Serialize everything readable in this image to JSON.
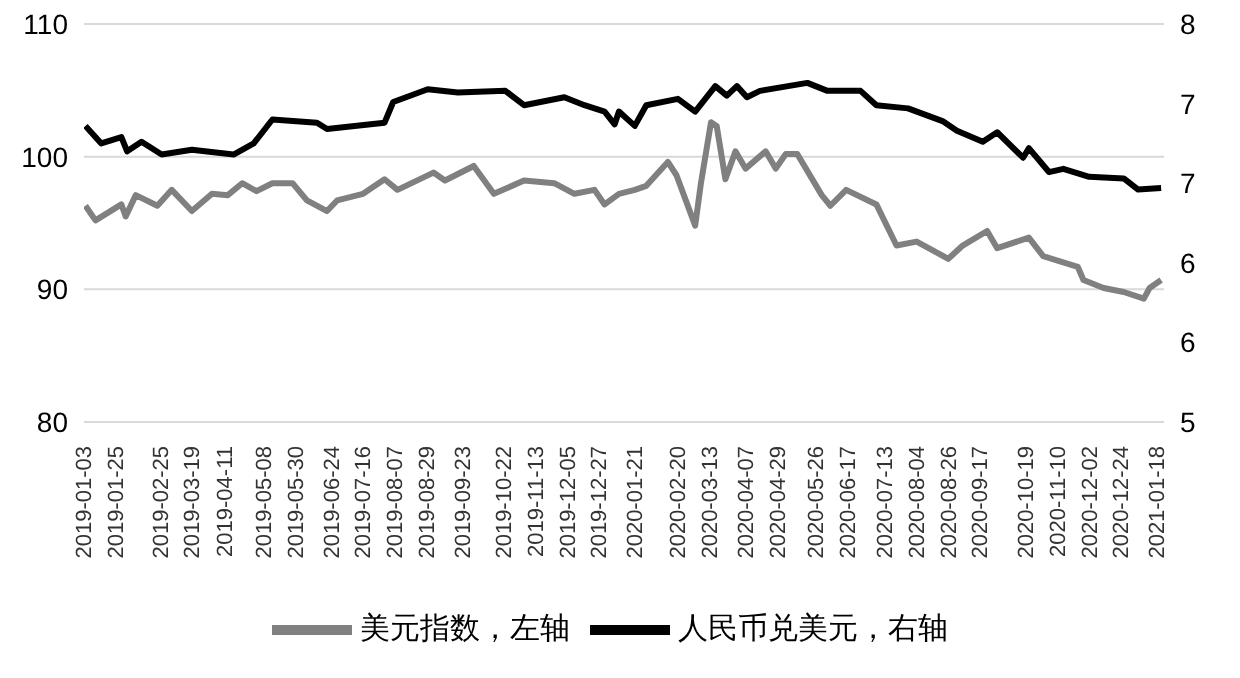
{
  "chart_data": {
    "type": "line",
    "xlim": [
      "2019-01-02",
      "2021-01-22"
    ],
    "xticks": [
      "2019-01-03",
      "2019-01-25",
      "2019-02-25",
      "2019-03-19",
      "2019-04-11",
      "2019-05-08",
      "2019-05-30",
      "2019-06-24",
      "2019-07-16",
      "2019-08-07",
      "2019-08-29",
      "2019-09-23",
      "2019-10-22",
      "2019-11-13",
      "2019-12-05",
      "2019-12-27",
      "2020-01-21",
      "2020-02-20",
      "2020-03-13",
      "2020-04-07",
      "2020-04-29",
      "2020-05-26",
      "2020-06-17",
      "2020-07-13",
      "2020-08-04",
      "2020-08-26",
      "2020-09-17",
      "2020-10-19",
      "2020-11-10",
      "2020-12-02",
      "2020-12-24",
      "2021-01-18"
    ],
    "ylim": [
      80,
      110
    ],
    "yticks": [
      80,
      90,
      100,
      110
    ],
    "y2lim": [
      5,
      7.5
    ],
    "y2ticks": [
      {
        "value": 5,
        "label": "5"
      },
      {
        "value": 5.5,
        "label": "6"
      },
      {
        "value": 6,
        "label": "6"
      },
      {
        "value": 6.5,
        "label": "7"
      },
      {
        "value": 7,
        "label": "7"
      },
      {
        "value": 7.5,
        "label": "8"
      }
    ],
    "grid": "y",
    "legend": "bottom",
    "marker": "none",
    "line_style": "solid",
    "series": [
      {
        "name": "美元指数，左轴",
        "color": "#808080",
        "x": [
          "2019-01-03",
          "2019-01-10",
          "2019-01-28",
          "2019-01-31",
          "2019-02-07",
          "2019-02-22",
          "2019-03-04",
          "2019-03-18",
          "2019-04-01",
          "2019-04-12",
          "2019-04-22",
          "2019-05-02",
          "2019-05-13",
          "2019-05-27",
          "2019-06-06",
          "2019-06-20",
          "2019-06-27",
          "2019-07-15",
          "2019-07-30",
          "2019-08-08",
          "2019-09-02",
          "2019-09-10",
          "2019-09-30",
          "2019-10-14",
          "2019-11-04",
          "2019-11-25",
          "2019-12-09",
          "2019-12-23",
          "2019-12-30",
          "2020-01-09",
          "2020-01-20",
          "2020-01-28",
          "2020-02-12",
          "2020-02-18",
          "2020-03-02",
          "2020-03-06",
          "2020-03-13",
          "2020-03-17",
          "2020-03-23",
          "2020-03-30",
          "2020-04-06",
          "2020-04-20",
          "2020-04-27",
          "2020-05-04",
          "2020-05-12",
          "2020-05-29",
          "2020-06-04",
          "2020-06-15",
          "2020-07-06",
          "2020-07-20",
          "2020-08-03",
          "2020-08-25",
          "2020-09-04",
          "2020-09-21",
          "2020-09-28",
          "2020-10-20",
          "2020-10-30",
          "2020-11-23",
          "2020-11-27",
          "2020-12-11",
          "2020-12-25",
          "2021-01-08",
          "2021-01-12",
          "2021-01-20"
        ],
        "values": [
          96.3,
          95.2,
          96.4,
          95.5,
          97.1,
          96.3,
          97.5,
          95.9,
          97.2,
          97.1,
          98.0,
          97.4,
          98.0,
          98.0,
          96.7,
          95.9,
          96.7,
          97.2,
          98.3,
          97.5,
          98.8,
          98.2,
          99.3,
          97.2,
          98.2,
          98.0,
          97.2,
          97.5,
          96.4,
          97.2,
          97.5,
          97.8,
          99.6,
          98.6,
          94.8,
          98.0,
          102.6,
          102.3,
          98.3,
          100.4,
          99.1,
          100.4,
          99.1,
          100.2,
          100.2,
          97.1,
          96.3,
          97.5,
          96.4,
          93.3,
          93.6,
          92.3,
          93.3,
          94.4,
          93.1,
          93.9,
          92.5,
          91.7,
          90.7,
          90.1,
          89.8,
          89.3,
          90.1,
          90.7
        ]
      },
      {
        "name": "人民币兑美元，右轴",
        "color": "#000000",
        "axis": "y2",
        "x": [
          "2019-01-03",
          "2019-01-14",
          "2019-01-28",
          "2019-02-01",
          "2019-02-11",
          "2019-02-25",
          "2019-03-18",
          "2019-04-16",
          "2019-04-30",
          "2019-05-13",
          "2019-06-13",
          "2019-06-20",
          "2019-07-30",
          "2019-08-05",
          "2019-08-29",
          "2019-09-19",
          "2019-10-22",
          "2019-11-04",
          "2019-12-02",
          "2019-12-16",
          "2019-12-30",
          "2020-01-06",
          "2020-01-09",
          "2020-01-20",
          "2020-01-28",
          "2020-02-19",
          "2020-03-02",
          "2020-03-16",
          "2020-03-24",
          "2020-03-31",
          "2020-04-07",
          "2020-04-16",
          "2020-05-19",
          "2020-06-02",
          "2020-06-25",
          "2020-07-06",
          "2020-07-28",
          "2020-08-21",
          "2020-08-31",
          "2020-09-18",
          "2020-09-28",
          "2020-10-16",
          "2020-10-20",
          "2020-11-03",
          "2020-11-13",
          "2020-12-01",
          "2020-12-25",
          "2021-01-04",
          "2021-01-20"
        ],
        "values": [
          6.86,
          6.75,
          6.79,
          6.7,
          6.76,
          6.68,
          6.71,
          6.68,
          6.75,
          6.9,
          6.88,
          6.84,
          6.88,
          7.01,
          7.09,
          7.07,
          7.08,
          6.99,
          7.04,
          6.99,
          6.95,
          6.87,
          6.95,
          6.86,
          6.99,
          7.03,
          6.95,
          7.11,
          7.05,
          7.11,
          7.04,
          7.08,
          7.13,
          7.08,
          7.08,
          6.99,
          6.97,
          6.89,
          6.83,
          6.76,
          6.82,
          6.66,
          6.72,
          6.57,
          6.59,
          6.54,
          6.53,
          6.46,
          6.47
        ]
      }
    ]
  }
}
